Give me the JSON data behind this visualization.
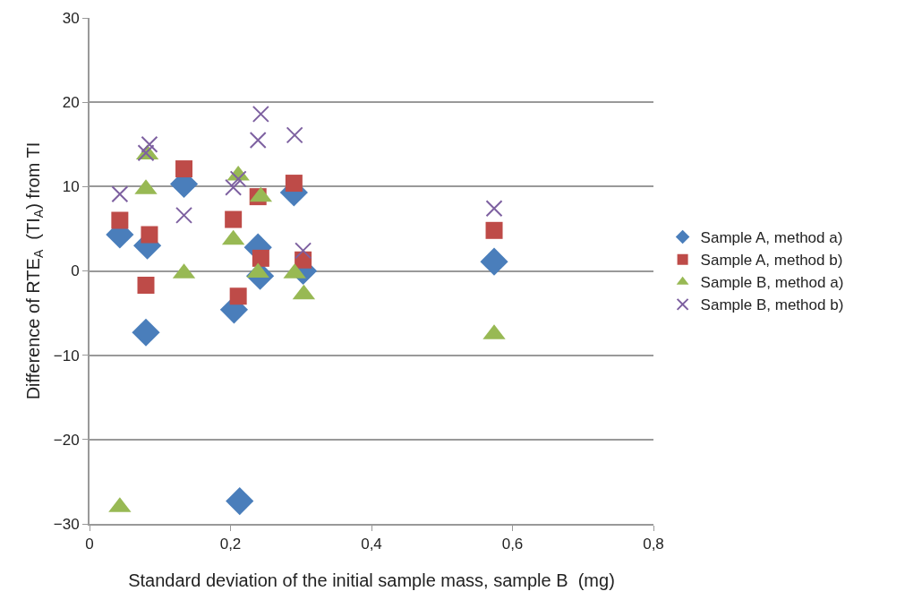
{
  "chart_data": {
    "type": "scatter",
    "xlabel": "Standard deviation of the initial sample mass, sample B  (mg)",
    "ylabel": "Difference of RTE$_{A}$  (TI$_{A}$) from TI",
    "xlim": [
      0,
      0.8
    ],
    "xticks": [
      0,
      {
        "value": 0.2,
        "label": "0,2"
      },
      {
        "value": 0.4,
        "label": "0,4"
      },
      {
        "value": 0.6,
        "label": "0,6"
      },
      {
        "value": 0.8,
        "label": "0,8"
      }
    ],
    "ylim": [
      -30,
      30
    ],
    "yticks": [
      {
        "value": -30,
        "label": "−30"
      },
      {
        "value": -20,
        "label": "−20"
      },
      {
        "value": -10,
        "label": "−10"
      },
      0,
      10,
      20,
      30
    ],
    "grid": "y",
    "legend": "right",
    "series": [
      {
        "name": "Sample A, method a)",
        "color": "#4a7ebb",
        "marker": "diamond",
        "x": [
          0.043,
          0.082,
          0.08,
          0.134,
          0.205,
          0.213,
          0.239,
          0.242,
          0.29,
          0.303,
          0.574
        ],
        "values": [
          4.3,
          3.0,
          -7.3,
          10.3,
          -4.6,
          -27.3,
          2.8,
          -0.6,
          9.3,
          0,
          1.1
        ]
      },
      {
        "name": "Sample A, method b)",
        "color": "#be4b48",
        "marker": "square",
        "x": [
          0.043,
          0.085,
          0.08,
          0.134,
          0.204,
          0.211,
          0.239,
          0.243,
          0.29,
          0.303,
          0.574
        ],
        "values": [
          6.0,
          4.3,
          -1.7,
          12.1,
          6.1,
          -3.0,
          8.8,
          1.5,
          10.4,
          1.3,
          4.8
        ]
      },
      {
        "name": "Sample B, method a)",
        "color": "#98b954",
        "marker": "triangle",
        "x": [
          0.043,
          0.082,
          0.08,
          0.134,
          0.204,
          0.211,
          0.243,
          0.239,
          0.291,
          0.304,
          0.574
        ],
        "values": [
          -28.0,
          13.8,
          9.7,
          -0.3,
          3.7,
          11.3,
          8.8,
          -0.2,
          -0.3,
          -2.8,
          -7.5
        ]
      },
      {
        "name": "Sample B, method b)",
        "color": "#7d60a0",
        "marker": "cross",
        "x": [
          0.043,
          0.085,
          0.08,
          0.134,
          0.204,
          0.211,
          0.243,
          0.239,
          0.291,
          0.303,
          0.574
        ],
        "values": [
          9.1,
          15.0,
          14.0,
          6.6,
          9.9,
          10.9,
          18.6,
          15.5,
          16.1,
          2.4,
          7.4
        ]
      }
    ]
  }
}
